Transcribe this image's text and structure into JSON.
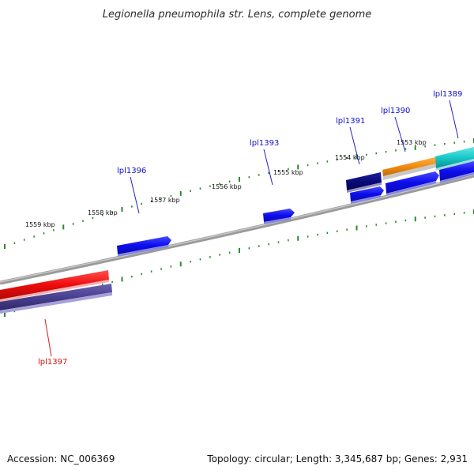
{
  "title": "Legionella pneumophila str. Lens, complete genome",
  "footer": {
    "accession": "Accession: NC_006369",
    "summary": "Topology: circular; Length: 3,345,687 bp; Genes: 2,931"
  },
  "tick_labels": [
    "1559 kbp",
    "1558 kbp",
    "1557 kbp",
    "1556 kbp",
    "1555 kbp",
    "1554 kbp",
    "1553 kbp"
  ],
  "genes": [
    {
      "id": "lpl1389",
      "label": "lpl1389",
      "color": "#1010c8"
    },
    {
      "id": "lpl1390",
      "label": "lpl1390",
      "color": "#1010c8"
    },
    {
      "id": "lpl1391",
      "label": "lpl1391",
      "color": "#1010c8"
    },
    {
      "id": "lpl1393",
      "label": "lpl1393",
      "color": "#1010c8"
    },
    {
      "id": "lpl1396",
      "label": "lpl1396",
      "color": "#1010c8"
    },
    {
      "id": "lpl1397",
      "label": "lpl1397",
      "color": "#d01010"
    }
  ],
  "colors": {
    "backbone": "#8a8a8a",
    "ticks": "#2a8a2a",
    "forward_cds": "#1010e8",
    "reverse_cds": "#ee1111",
    "dark_feature": "#0a0a78",
    "orange_feature": "#f08a10",
    "cyan_feature": "#18c8c8",
    "slate_feature": "#4a4090"
  }
}
